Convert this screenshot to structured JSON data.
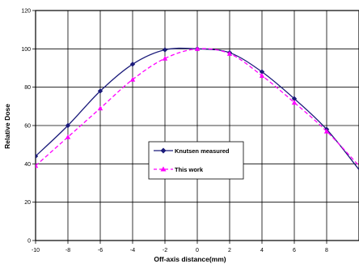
{
  "chart_data": {
    "type": "line",
    "title": "",
    "xlabel": "Off-axis distance(mm)",
    "ylabel": "Relative Dose",
    "xlim": [
      -10,
      10
    ],
    "ylim": [
      0,
      120
    ],
    "x_ticks": [
      -10,
      -8,
      -6,
      -4,
      -2,
      0,
      2,
      4,
      6,
      8
    ],
    "y_ticks": [
      0,
      20,
      40,
      60,
      80,
      100,
      120
    ],
    "grid": true,
    "legend_position": "center-left",
    "series": [
      {
        "name": "Knutsen measured",
        "color": "#1a1a7a",
        "line_style": "solid",
        "marker": "diamond",
        "x": [
          -10,
          -8,
          -6,
          -4,
          -2,
          0,
          2,
          4,
          6,
          8,
          10
        ],
        "y": [
          44,
          60,
          78,
          92,
          99.5,
          100,
          98,
          88,
          74,
          58,
          37
        ]
      },
      {
        "name": "This work",
        "color": "#ff00ff",
        "line_style": "dashed",
        "marker": "triangle",
        "x": [
          -10,
          -8,
          -6,
          -4,
          -2,
          0,
          2,
          4,
          6,
          8,
          10
        ],
        "y": [
          39,
          54,
          69,
          84,
          95,
          100,
          97.5,
          86,
          72,
          57,
          39
        ]
      }
    ]
  }
}
